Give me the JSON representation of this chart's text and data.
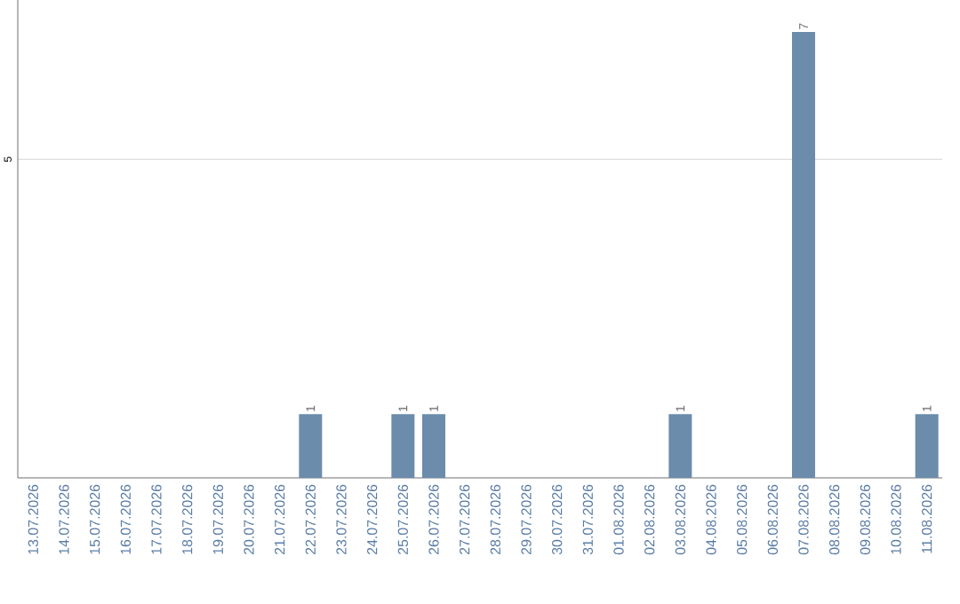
{
  "chart_data": {
    "type": "bar",
    "categories": [
      "13.07.2026",
      "14.07.2026",
      "15.07.2026",
      "16.07.2026",
      "17.07.2026",
      "18.07.2026",
      "19.07.2026",
      "20.07.2026",
      "21.07.2026",
      "22.07.2026",
      "23.07.2026",
      "24.07.2026",
      "25.07.2026",
      "26.07.2026",
      "27.07.2026",
      "28.07.2026",
      "29.07.2026",
      "30.07.2026",
      "31.07.2026",
      "01.08.2026",
      "02.08.2026",
      "03.08.2026",
      "04.08.2026",
      "05.08.2026",
      "06.08.2026",
      "07.08.2026",
      "08.08.2026",
      "09.08.2026",
      "10.08.2026",
      "11.08.2026"
    ],
    "values": [
      0,
      0,
      0,
      0,
      0,
      0,
      0,
      0,
      0,
      1,
      0,
      0,
      1,
      1,
      0,
      0,
      0,
      0,
      0,
      0,
      0,
      1,
      0,
      0,
      0,
      7,
      0,
      0,
      0,
      1
    ],
    "value_labels": [
      null,
      null,
      null,
      null,
      null,
      null,
      null,
      null,
      null,
      "1",
      null,
      null,
      "1",
      "1",
      null,
      null,
      null,
      null,
      null,
      null,
      null,
      "1",
      null,
      null,
      null,
      "7",
      null,
      null,
      null,
      "1"
    ],
    "color": "#6b8cab",
    "ylim": [
      0,
      7.5
    ],
    "yticks": [
      5
    ],
    "grid": "y"
  }
}
